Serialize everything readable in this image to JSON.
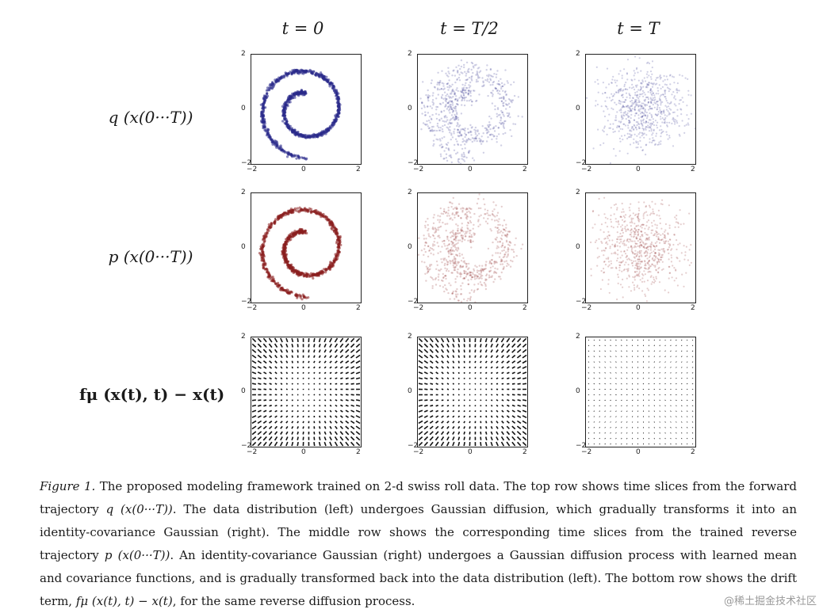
{
  "columns": [
    "t = 0",
    "t = T/2",
    "t = T"
  ],
  "rows": [
    {
      "label": "q (x(0···T))",
      "color": "#2a2a8a"
    },
    {
      "label": "p (x(0···T))",
      "color": "#8a1f1f"
    },
    {
      "label": "fμ (x(t), t) − x(t)",
      "color": "#111111"
    }
  ],
  "axis": {
    "x_ticks": [
      "−2",
      "0",
      "2"
    ],
    "y_ticks": [
      "2",
      "0",
      "−2"
    ]
  },
  "caption": {
    "figure_label": "Figure 1.",
    "text_1": "The proposed modeling framework trained on 2-d swiss roll data. The top row shows time slices from the forward trajectory",
    "math_q": "q (x(0···T))",
    "text_2": ". The data distribution (left) undergoes Gaussian diffusion, which gradually transforms it into an identity-covariance Gaussian (right). The middle row shows the corresponding time slices from the trained reverse trajectory",
    "math_p": "p (x(0···T))",
    "text_3": ". An identity-covariance Gaussian (right) undergoes a Gaussian diffusion process with learned mean and covariance functions, and is gradually transformed back into the data distribution (left). The bottom row shows the drift term,",
    "math_f": "fμ (x(t), t) − x(t)",
    "text_4": ", for the same reverse diffusion process."
  },
  "watermark": "@稀土掘金技术社区"
}
